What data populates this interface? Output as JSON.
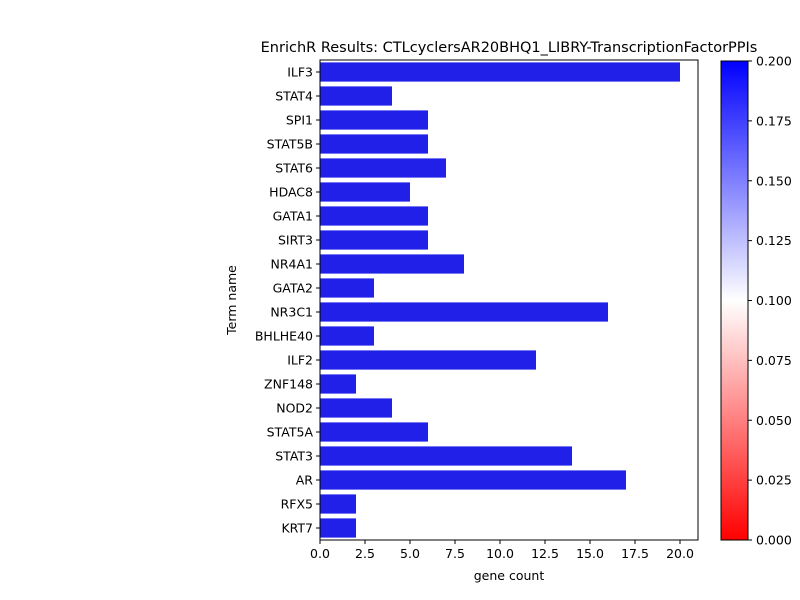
{
  "chart_data": {
    "type": "bar",
    "orientation": "horizontal",
    "title": "EnrichR Results: CTLcyclersAR20BHQ1_LIBRY-TranscriptionFactorPPIs",
    "xlabel": "gene count",
    "ylabel": "Term name",
    "xlim": [
      0,
      21
    ],
    "x_ticks": [
      "0.0",
      "2.5",
      "5.0",
      "7.5",
      "10.0",
      "12.5",
      "15.0",
      "17.5",
      "20.0"
    ],
    "x_tick_values": [
      0,
      2.5,
      5,
      7.5,
      10,
      12.5,
      15,
      17.5,
      20
    ],
    "categories": [
      "ILF3",
      "STAT4",
      "SPI1",
      "STAT5B",
      "STAT6",
      "HDAC8",
      "GATA1",
      "SIRT3",
      "NR4A1",
      "GATA2",
      "NR3C1",
      "BHLHE40",
      "ILF2",
      "ZNF148",
      "NOD2",
      "STAT5A",
      "STAT3",
      "AR",
      "RFX5",
      "KRT7"
    ],
    "values": [
      20,
      4,
      6,
      6,
      7,
      5,
      6,
      6,
      8,
      3,
      16,
      3,
      12,
      2,
      4,
      6,
      14,
      17,
      2,
      2
    ],
    "bar_color": "#2020e8",
    "grid": false,
    "legend": false,
    "colorbar": {
      "range": [
        0.0,
        0.2
      ],
      "ticks": [
        "0.000",
        "0.025",
        "0.050",
        "0.075",
        "0.100",
        "0.125",
        "0.150",
        "0.175",
        "0.200"
      ],
      "tick_values": [
        0,
        0.025,
        0.05,
        0.075,
        0.1,
        0.125,
        0.15,
        0.175,
        0.2
      ],
      "colors": [
        "#ff0000",
        "#ffffff",
        "#0000ff"
      ]
    }
  }
}
